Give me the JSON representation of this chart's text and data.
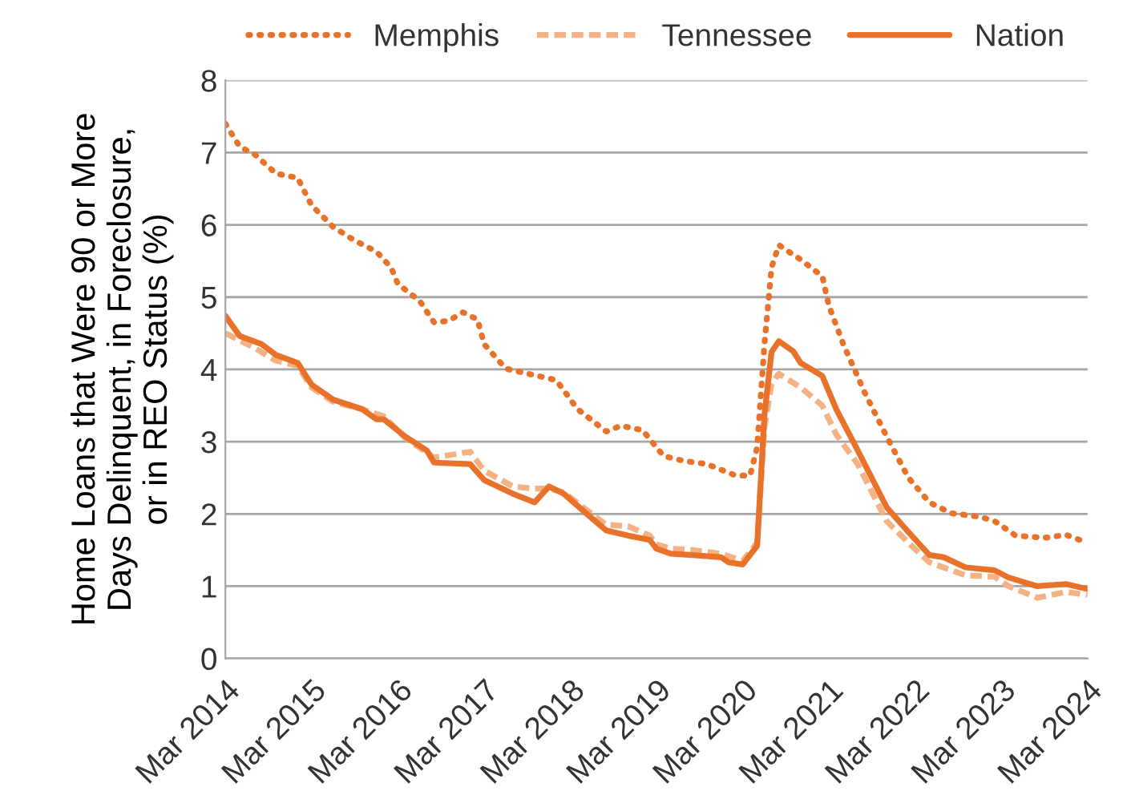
{
  "chart_data": {
    "type": "line",
    "ylabel": "Home Loans that Were 90 or More\nDays Delinquent, in Foreclosure,\nor in REO Status (%)",
    "xlim": [
      "2014-03",
      "2024-03"
    ],
    "xticks": [
      {
        "value": "2014-03",
        "label": "Mar 2014"
      },
      {
        "value": "2015-03",
        "label": "Mar 2015"
      },
      {
        "value": "2016-03",
        "label": "Mar 2016"
      },
      {
        "value": "2017-03",
        "label": "Mar 2017"
      },
      {
        "value": "2018-03",
        "label": "Mar 2018"
      },
      {
        "value": "2019-03",
        "label": "Mar 2019"
      },
      {
        "value": "2020-03",
        "label": "Mar 2020"
      },
      {
        "value": "2021-03",
        "label": "Mar 2021"
      },
      {
        "value": "2022-03",
        "label": "Mar 2022"
      },
      {
        "value": "2023-03",
        "label": "Mar 2023"
      },
      {
        "value": "2024-03",
        "label": "Mar 2024"
      }
    ],
    "ylim": [
      0,
      8
    ],
    "yticks": [
      0,
      1,
      2,
      3,
      4,
      5,
      6,
      7,
      8
    ],
    "grid": "y",
    "legend": "top",
    "series": [
      {
        "name": "Memphis",
        "color": "#e8722a",
        "line_style": "dotted",
        "x": [
          "2014-03",
          "2014-05",
          "2014-07",
          "2014-10",
          "2015-01",
          "2015-03",
          "2015-06",
          "2015-09",
          "2015-12",
          "2016-02",
          "2016-03",
          "2016-06",
          "2016-08",
          "2016-10",
          "2016-12",
          "2017-02",
          "2017-03",
          "2017-06",
          "2017-10",
          "2018-01",
          "2018-04",
          "2018-08",
          "2018-10",
          "2019-01",
          "2019-04",
          "2019-07",
          "2019-10",
          "2020-02",
          "2020-04",
          "2020-05",
          "2020-06",
          "2020-07",
          "2020-08",
          "2020-11",
          "2021-02",
          "2021-03",
          "2021-05",
          "2021-08",
          "2021-11",
          "2022-02",
          "2022-05",
          "2022-08",
          "2022-12",
          "2023-02",
          "2023-05",
          "2023-09",
          "2023-12",
          "2024-03"
        ],
        "values": [
          7.4,
          7.08,
          6.98,
          6.71,
          6.65,
          6.27,
          5.97,
          5.78,
          5.63,
          5.41,
          5.18,
          4.95,
          4.65,
          4.67,
          4.79,
          4.69,
          4.35,
          4.01,
          3.92,
          3.85,
          3.45,
          3.14,
          3.22,
          3.16,
          2.8,
          2.73,
          2.69,
          2.53,
          2.53,
          2.92,
          4.35,
          5.41,
          5.72,
          5.52,
          5.29,
          4.88,
          4.35,
          3.67,
          3.07,
          2.5,
          2.16,
          2.01,
          1.96,
          1.9,
          1.7,
          1.67,
          1.71,
          1.6
        ]
      },
      {
        "name": "Tennessee",
        "color": "#f4b183",
        "line_style": "dashed",
        "x": [
          "2014-03",
          "2014-07",
          "2014-10",
          "2015-01",
          "2015-03",
          "2015-06",
          "2015-10",
          "2016-01",
          "2016-04",
          "2016-07",
          "2016-08",
          "2017-01",
          "2017-03",
          "2017-07",
          "2017-10",
          "2017-12",
          "2018-02",
          "2018-06",
          "2018-08",
          "2018-11",
          "2019-02",
          "2019-03",
          "2019-05",
          "2019-08",
          "2019-12",
          "2020-03",
          "2020-05",
          "2020-06",
          "2020-07",
          "2020-08",
          "2020-11",
          "2021-02",
          "2021-04",
          "2021-07",
          "2021-11",
          "2022-02",
          "2022-05",
          "2022-10",
          "2023-02",
          "2023-04",
          "2023-08",
          "2023-12",
          "2024-03"
        ],
        "values": [
          4.5,
          4.3,
          4.12,
          4.05,
          3.75,
          3.55,
          3.45,
          3.35,
          3.05,
          2.85,
          2.78,
          2.86,
          2.6,
          2.38,
          2.35,
          2.35,
          2.3,
          2.0,
          1.85,
          1.83,
          1.7,
          1.58,
          1.52,
          1.5,
          1.45,
          1.35,
          1.6,
          3.2,
          3.8,
          3.94,
          3.75,
          3.5,
          3.1,
          2.69,
          1.9,
          1.6,
          1.33,
          1.15,
          1.13,
          1.0,
          0.84,
          0.92,
          0.88
        ]
      },
      {
        "name": "Nation",
        "color": "#e8722a",
        "line_style": "solid",
        "x": [
          "2014-03",
          "2014-05",
          "2014-08",
          "2014-10",
          "2015-01",
          "2015-03",
          "2015-06",
          "2015-10",
          "2015-12",
          "2016-01",
          "2016-04",
          "2016-07",
          "2016-08",
          "2017-01",
          "2017-03",
          "2017-07",
          "2017-10",
          "2017-12",
          "2018-02",
          "2018-06",
          "2018-08",
          "2018-11",
          "2019-02",
          "2019-03",
          "2019-05",
          "2019-08",
          "2019-12",
          "2020-01",
          "2020-03",
          "2020-05",
          "2020-06",
          "2020-07",
          "2020-08",
          "2020-10",
          "2020-11",
          "2021-02",
          "2021-04",
          "2021-07",
          "2021-11",
          "2022-02",
          "2022-05",
          "2022-07",
          "2022-10",
          "2023-02",
          "2023-04",
          "2023-08",
          "2023-12",
          "2024-03"
        ],
        "values": [
          4.74,
          4.46,
          4.35,
          4.2,
          4.09,
          3.79,
          3.58,
          3.45,
          3.31,
          3.31,
          3.07,
          2.88,
          2.71,
          2.69,
          2.47,
          2.28,
          2.16,
          2.38,
          2.28,
          1.94,
          1.77,
          1.7,
          1.64,
          1.52,
          1.45,
          1.43,
          1.4,
          1.33,
          1.3,
          1.56,
          3.37,
          4.24,
          4.39,
          4.25,
          4.09,
          3.91,
          3.45,
          2.88,
          2.09,
          1.75,
          1.43,
          1.4,
          1.26,
          1.22,
          1.12,
          1.0,
          1.03,
          0.96
        ]
      }
    ]
  }
}
